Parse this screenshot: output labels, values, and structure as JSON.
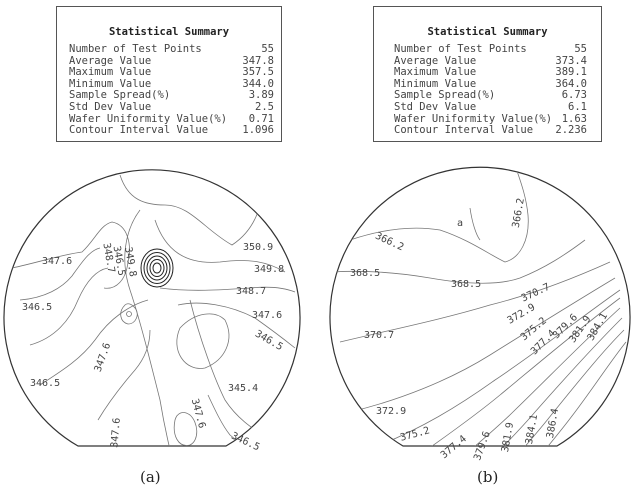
{
  "panels": [
    {
      "caption": "(a)",
      "summary": {
        "title": "Statistical Summary",
        "rows": [
          {
            "label": "Number of Test Points",
            "value": "55"
          },
          {
            "label": "Average Value",
            "value": "347.8"
          },
          {
            "label": "Maximum Value",
            "value": "357.5"
          },
          {
            "label": "Minimum Value",
            "value": "344.0"
          },
          {
            "label": "Sample Spread(%)",
            "value": "3.89"
          },
          {
            "label": "Std Dev Value",
            "value": "2.5"
          },
          {
            "label": "Wafer Uniformity Value(%)",
            "value": "0.71"
          },
          {
            "label": "Contour Interval Value",
            "value": "1.096"
          }
        ]
      },
      "contour_labels": [
        "347.6",
        "348.7",
        "346.5",
        "349.8",
        "350.9",
        "349.8",
        "348.7",
        "347.6",
        "346.5",
        "346.5",
        "347.6",
        "346.5",
        "345.4",
        "347.6",
        "346.5",
        "347.6"
      ]
    },
    {
      "caption": "(b)",
      "summary": {
        "title": "Statistical Summary",
        "rows": [
          {
            "label": "Number of Test Points",
            "value": "55"
          },
          {
            "label": "Average Value",
            "value": "373.4"
          },
          {
            "label": "Maximum Value",
            "value": "389.1"
          },
          {
            "label": "Minimum Value",
            "value": "364.0"
          },
          {
            "label": "Sample Spread(%)",
            "value": "6.73"
          },
          {
            "label": "Std Dev Value",
            "value": "6.1"
          },
          {
            "label": "Wafer Uniformity Value(%)",
            "value": "1.63"
          },
          {
            "label": "Contour Interval Value",
            "value": "2.236"
          }
        ]
      },
      "contour_labels": [
        "366.2",
        "366.2",
        "368.5",
        "368.5",
        "370.7",
        "370.7",
        "372.9",
        "375.2",
        "377.4",
        "379.6",
        "381.9",
        "384.1",
        "372.9",
        "375.2",
        "377.4",
        "379.6",
        "381.9",
        "384.1",
        "386.4"
      ]
    }
  ]
}
